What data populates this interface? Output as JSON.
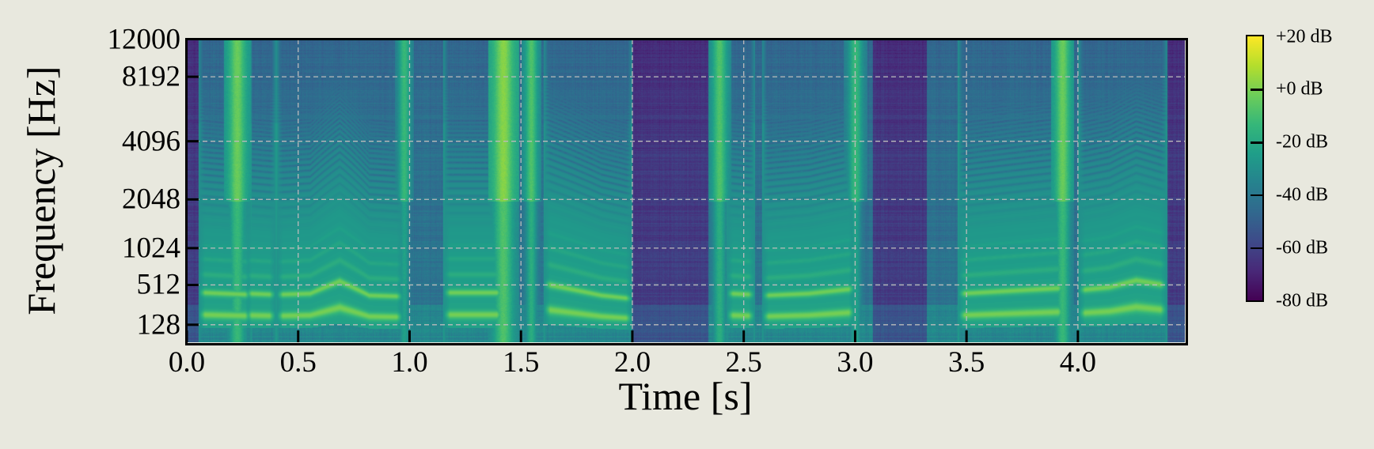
{
  "chart_data": {
    "type": "heatmap",
    "subtype": "spectrogram",
    "title": "",
    "xlabel": "Time [s]",
    "ylabel": "Frequency [Hz]",
    "xlim": [
      0.0,
      4.48
    ],
    "ylim": [
      0,
      12000
    ],
    "yscale": "mel",
    "x_ticks": [
      "0.0",
      "0.5",
      "1.0",
      "1.5",
      "2.0",
      "2.5",
      "3.0",
      "3.5",
      "4.0"
    ],
    "x_tick_values": [
      0.0,
      0.5,
      1.0,
      1.5,
      2.0,
      2.5,
      3.0,
      3.5,
      4.0
    ],
    "y_ticks": [
      "128",
      "512",
      "1024",
      "2048",
      "4096",
      "8192",
      "12000"
    ],
    "y_tick_values": [
      128,
      512,
      1024,
      2048,
      4096,
      8192,
      12000
    ],
    "grid": true,
    "grid_style": "dashed",
    "colormap": "viridis",
    "colorbar": {
      "range_db": [
        -80,
        20
      ],
      "ticks": [
        "+20 dB",
        "+0 dB",
        "-20 dB",
        "-40 dB",
        "-60 dB",
        "-80 dB"
      ],
      "tick_values": [
        20,
        0,
        -20,
        -40,
        -60,
        -80
      ]
    },
    "voiced_segments": [
      {
        "start": 0.07,
        "end": 0.27,
        "f0": [
          215,
          205
        ]
      },
      {
        "start": 0.28,
        "end": 0.38,
        "f0": [
          210,
          205
        ]
      },
      {
        "start": 0.42,
        "end": 0.95,
        "f0": [
          205,
          210,
          280,
          200,
          195
        ]
      },
      {
        "start": 1.17,
        "end": 1.4,
        "f0": [
          215,
          215
        ]
      },
      {
        "start": 1.62,
        "end": 1.98,
        "f0": [
          260,
          230,
          200,
          185
        ]
      },
      {
        "start": 2.44,
        "end": 2.53,
        "f0": [
          210,
          205
        ]
      },
      {
        "start": 2.6,
        "end": 2.98,
        "f0": [
          200,
          210,
          235
        ]
      },
      {
        "start": 3.48,
        "end": 3.92,
        "f0": [
          210,
          225,
          240
        ]
      },
      {
        "start": 4.02,
        "end": 4.38,
        "f0": [
          230,
          245,
          285,
          260
        ]
      }
    ],
    "broadband_bursts": [
      {
        "start": 0.19,
        "end": 0.26,
        "level_db": -5
      },
      {
        "start": 0.95,
        "end": 1.0,
        "level_db": -15
      },
      {
        "start": 1.38,
        "end": 1.46,
        "level_db": 0
      },
      {
        "start": 1.52,
        "end": 1.57,
        "level_db": -10
      },
      {
        "start": 2.36,
        "end": 2.42,
        "level_db": -10
      },
      {
        "start": 2.97,
        "end": 3.03,
        "level_db": -15
      },
      {
        "start": 3.9,
        "end": 3.96,
        "level_db": -5
      }
    ],
    "silent_regions": [
      {
        "start": 0.0,
        "end": 0.06
      },
      {
        "start": 2.0,
        "end": 2.34
      },
      {
        "start": 3.08,
        "end": 3.32
      },
      {
        "start": 4.4,
        "end": 4.48
      }
    ]
  }
}
